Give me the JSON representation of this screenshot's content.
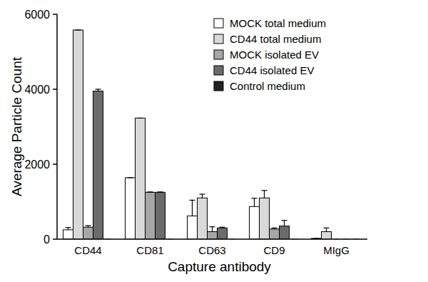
{
  "chart_data": {
    "type": "bar",
    "x_label": "Capture antibody",
    "y_label": "Average Particle Count",
    "categories": [
      "CD44",
      "CD81",
      "CD63",
      "CD9",
      "MIgG"
    ],
    "ylim": [
      0,
      6000
    ],
    "yticks": [
      0,
      2000,
      4000,
      6000
    ],
    "grid": false,
    "legend": "upper right",
    "series": [
      {
        "name": "MOCK total medium",
        "color": "#ffffff",
        "values": [
          250,
          1640,
          620,
          870,
          20
        ],
        "errors": [
          60,
          0,
          420,
          220,
          0
        ]
      },
      {
        "name": "CD44 total medium",
        "color": "#d9d9d9",
        "values": [
          5580,
          3230,
          1100,
          1100,
          200
        ],
        "errors": [
          0,
          0,
          100,
          200,
          100
        ]
      },
      {
        "name": "MOCK isolated EV",
        "color": "#a6a6a6",
        "values": [
          320,
          1250,
          200,
          270,
          0
        ],
        "errors": [
          40,
          10,
          130,
          30,
          0
        ]
      },
      {
        "name": "CD44 isolated EV",
        "color": "#6b6b6b",
        "values": [
          3950,
          1250,
          300,
          350,
          0
        ],
        "errors": [
          50,
          10,
          20,
          150,
          0
        ]
      },
      {
        "name": "Control medium",
        "color": "#222222",
        "values": [
          0,
          0,
          0,
          0,
          0
        ],
        "errors": [
          0,
          0,
          0,
          0,
          0
        ]
      }
    ]
  }
}
